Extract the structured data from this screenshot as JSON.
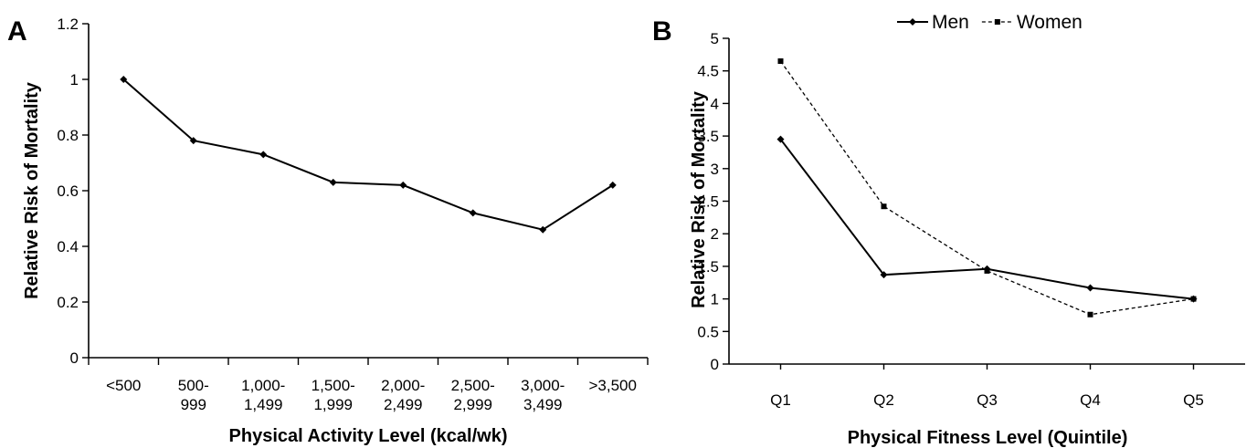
{
  "chart_data": [
    {
      "panel": "A",
      "type": "line",
      "categories": [
        "<500|",
        "500-|999",
        "1,000-|1,499",
        "1,500-|1,999",
        "2,000-|2,499",
        "2,500-|2,999",
        "3,000-|3,499",
        ">3,500|"
      ],
      "series": [
        {
          "values": [
            1.0,
            0.78,
            0.73,
            0.63,
            0.62,
            0.52,
            0.46,
            0.62
          ],
          "color": "#000000",
          "marker": "diamond",
          "dash": "solid"
        }
      ],
      "ylim": [
        0,
        1.2
      ],
      "yticks": [
        "0",
        "0.2",
        "0.4",
        "0.6",
        "0.8",
        "1",
        "1.2"
      ],
      "xlabel": "Physical Activity Level (kcal/wk)",
      "ylabel": "Relative Risk of Mortality",
      "grid": false
    },
    {
      "panel": "B",
      "type": "line",
      "categories": [
        "Q1",
        "Q2",
        "Q3",
        "Q4",
        "Q5"
      ],
      "series": [
        {
          "name": "Men",
          "values": [
            3.45,
            1.37,
            1.46,
            1.17,
            1.0
          ],
          "color": "#000000",
          "marker": "diamond",
          "dash": "solid"
        },
        {
          "name": "Women",
          "values": [
            4.65,
            2.42,
            1.43,
            0.76,
            1.0
          ],
          "color": "#000000",
          "marker": "square",
          "dash": "dashed"
        }
      ],
      "ylim": [
        0,
        5
      ],
      "yticks": [
        "0",
        "0.5",
        "1",
        "1.5",
        "2",
        "2.5",
        "3",
        "3.5",
        "4",
        "4.5",
        "5"
      ],
      "xlabel": "Physical Fitness Level (Quintile)",
      "ylabel": "Relative Risk of Mortality",
      "legend_position": "top",
      "grid": false
    }
  ]
}
